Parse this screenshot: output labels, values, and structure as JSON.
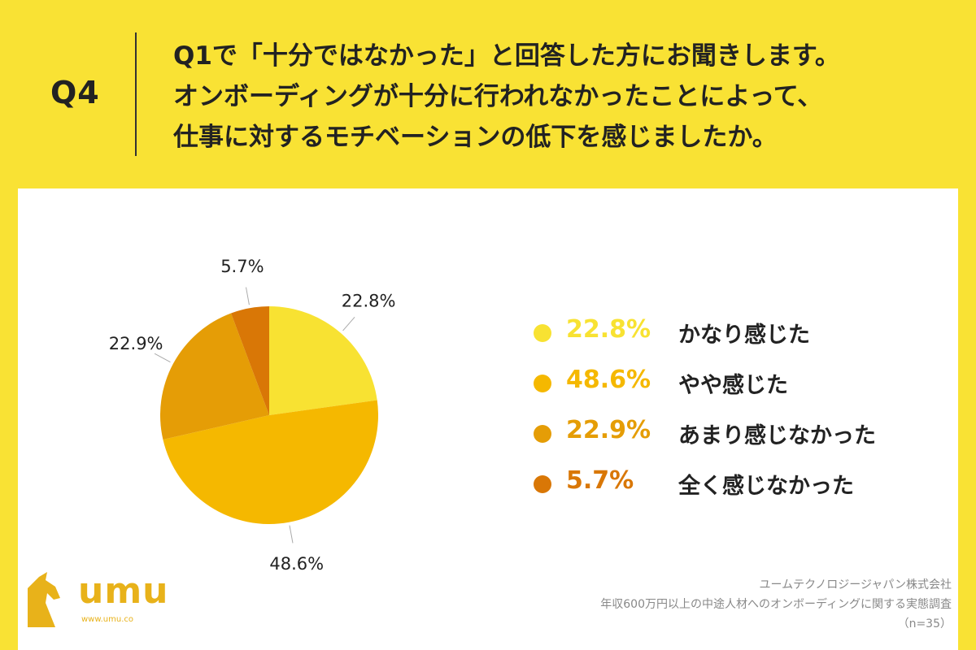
{
  "header": {
    "q_label": "Q4",
    "question_lines": [
      "Q1で「十分ではなかった」と回答した方にお聞きします。",
      "オンボーディングが十分に行われなかったことによって、",
      "仕事に対するモチベーションの低下を感じましたか。"
    ]
  },
  "chart_data": {
    "type": "pie",
    "title": "",
    "slices": [
      {
        "label": "かなり感じた",
        "value": 22.8,
        "value_label": "22.8%",
        "color": "#f8e232"
      },
      {
        "label": "やや感じた",
        "value": 48.6,
        "value_label": "48.6%",
        "color": "#f5b800"
      },
      {
        "label": "あまり感じなかった",
        "value": 22.9,
        "value_label": "22.9%",
        "color": "#e59d06"
      },
      {
        "label": "全く感じなかった",
        "value": 5.7,
        "value_label": "5.7%",
        "color": "#d97706"
      }
    ],
    "legend_placement": "right"
  },
  "branding": {
    "logo_text": "umu",
    "logo_url": "www.umu.co",
    "logo_color": "#e8b21a"
  },
  "footer": {
    "company": "ユームテクノロジージャパン株式会社",
    "survey": "年収600万円以上の中途人材へのオンボーディングに関する実態調査",
    "sample": "（n=35）"
  }
}
